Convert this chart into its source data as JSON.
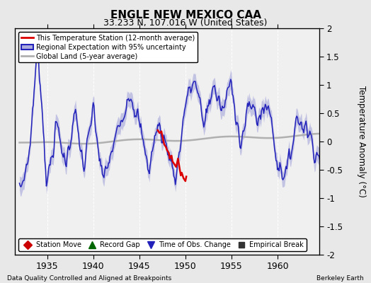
{
  "title": "ENGLE NEW MEXICO CAA",
  "subtitle": "33.233 N, 107.016 W (United States)",
  "ylabel": "Temperature Anomaly (°C)",
  "xlabel_left": "Data Quality Controlled and Aligned at Breakpoints",
  "xlabel_right": "Berkeley Earth",
  "xlim": [
    1931.5,
    1964.5
  ],
  "ylim": [
    -2,
    2
  ],
  "yticks": [
    -2,
    -1.5,
    -1,
    -0.5,
    0,
    0.5,
    1,
    1.5,
    2
  ],
  "xticks": [
    1935,
    1940,
    1945,
    1950,
    1955,
    1960
  ],
  "bg_color": "#e8e8e8",
  "plot_bg_color": "#f0f0f0",
  "regional_color": "#2222bb",
  "regional_fill_color": "#aaaadd",
  "station_color": "#dd0000",
  "global_color": "#b0b0b0",
  "legend_items": [
    {
      "label": "This Temperature Station (12-month average)",
      "color": "#dd0000",
      "lw": 2
    },
    {
      "label": "Regional Expectation with 95% uncertainty",
      "color": "#2222bb",
      "lw": 2
    },
    {
      "label": "Global Land (5-year average)",
      "color": "#b0b0b0",
      "lw": 2
    }
  ],
  "bottom_legend": [
    {
      "label": "Station Move",
      "marker": "D",
      "color": "#cc0000"
    },
    {
      "label": "Record Gap",
      "marker": "^",
      "color": "#006600"
    },
    {
      "label": "Time of Obs. Change",
      "marker": "v",
      "color": "#2222bb"
    },
    {
      "label": "Empirical Break",
      "marker": "s",
      "color": "#333333"
    }
  ]
}
